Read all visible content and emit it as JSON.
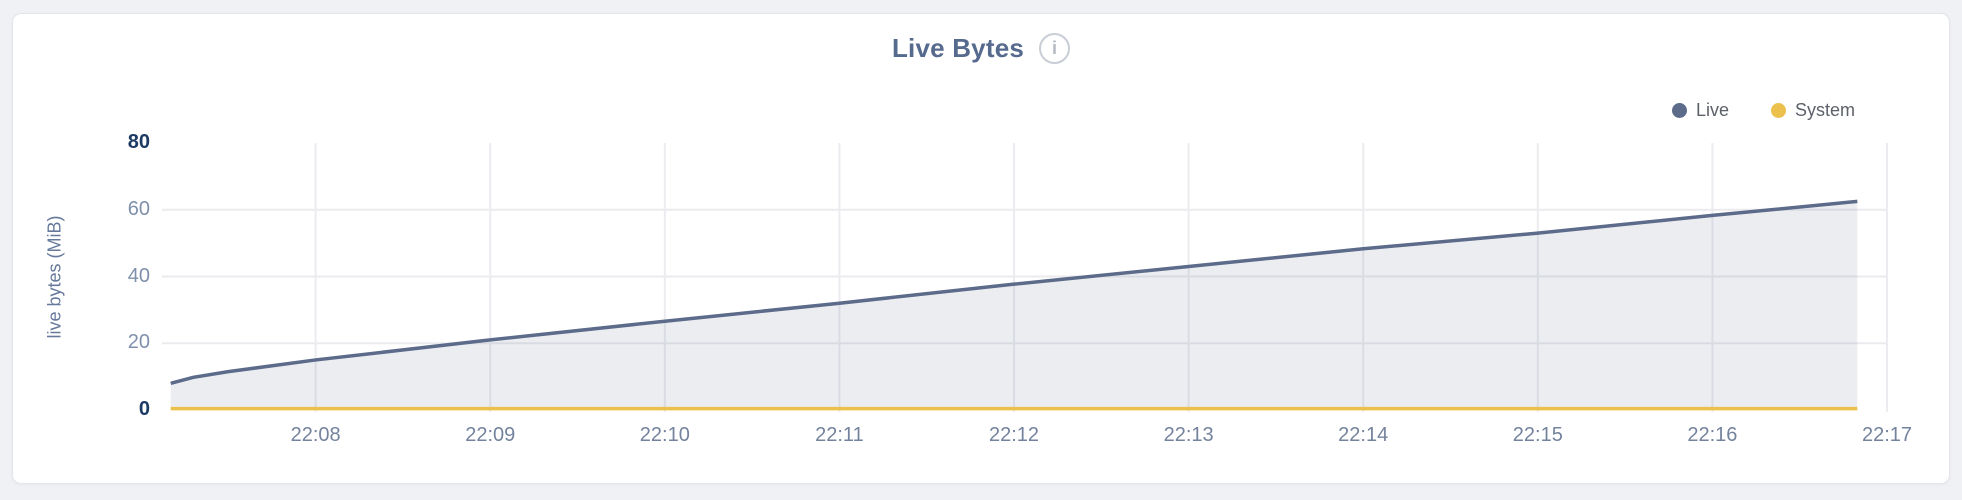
{
  "page": {
    "background": "#f0f1f5"
  },
  "chart": {
    "title": "Live Bytes",
    "info_icon": "i",
    "ylabel": "live bytes (MiB)"
  },
  "chart_data": {
    "type": "area",
    "title": "Live Bytes",
    "xlabel": "",
    "ylabel": "live bytes (MiB)",
    "x_unit": "minutes after 22:00",
    "xlim": [
      7.12,
      17
    ],
    "ylim": [
      0,
      80
    ],
    "grid": {
      "vertical": true,
      "horizontal_at": [
        20,
        40,
        60
      ]
    },
    "legend_position": "top-right",
    "x_ticks": [
      {
        "t": 8,
        "label": "22:08"
      },
      {
        "t": 9,
        "label": "22:09"
      },
      {
        "t": 10,
        "label": "22:10"
      },
      {
        "t": 11,
        "label": "22:11"
      },
      {
        "t": 12,
        "label": "22:12"
      },
      {
        "t": 13,
        "label": "22:13"
      },
      {
        "t": 14,
        "label": "22:14"
      },
      {
        "t": 15,
        "label": "22:15"
      },
      {
        "t": 16,
        "label": "22:16"
      },
      {
        "t": 17,
        "label": "22:17"
      }
    ],
    "y_ticks": [
      {
        "v": 0,
        "label": "0",
        "major": true
      },
      {
        "v": 20,
        "label": "20",
        "major": false
      },
      {
        "v": 40,
        "label": "40",
        "major": false
      },
      {
        "v": 60,
        "label": "60",
        "major": false
      },
      {
        "v": 80,
        "label": "80",
        "major": true
      }
    ],
    "series": [
      {
        "name": "Live",
        "type": "area",
        "color": "#5c6b8a",
        "fill": "rgba(92,107,138,0.12)",
        "points": [
          [
            7.17,
            8
          ],
          [
            7.3,
            9.8
          ],
          [
            7.5,
            11.5
          ],
          [
            8,
            15
          ],
          [
            9,
            21
          ],
          [
            10,
            26.6
          ],
          [
            11,
            32
          ],
          [
            12,
            37.7
          ],
          [
            13,
            43
          ],
          [
            14,
            48.3
          ],
          [
            15,
            53
          ],
          [
            16,
            58.3
          ],
          [
            16.83,
            62.5
          ]
        ]
      },
      {
        "name": "System",
        "type": "line",
        "color": "#ecc04d",
        "points": [
          [
            7.17,
            0.4
          ],
          [
            16.83,
            0.4
          ]
        ]
      }
    ],
    "grid_color_vertical": "#ececf0",
    "grid_color_horizontal": "#ebebef"
  }
}
